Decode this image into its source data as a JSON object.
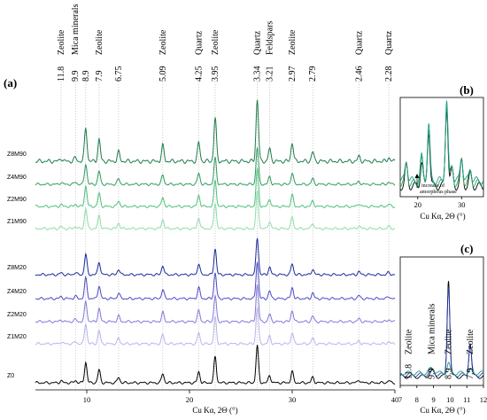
{
  "panels": {
    "a": "(a)",
    "b": "(b)",
    "c": "(c)"
  },
  "colors": {
    "zeolite_m90": [
      "#1e7a4a",
      "#2e9a5c",
      "#4cbf7c",
      "#8fdcab"
    ],
    "zeolite_m20": [
      "#1a2a9a",
      "#4a4ac8",
      "#7f79d8",
      "#b6b4ec"
    ],
    "reference": "#000000",
    "highlight_green": "#2fa84f",
    "highlight_teal": "#1f9a8a",
    "highlight_blue": "#2b3fb0"
  },
  "chart_data": [
    {
      "type": "line",
      "xlabel": "Cu Kα, 2Θ (°)",
      "xlim": [
        5,
        40
      ],
      "xticks": [
        10,
        20,
        30,
        40
      ],
      "series": [
        {
          "name": "Z8M90",
          "color": "#1e7a4a"
        },
        {
          "name": "Z4M90",
          "color": "#2e9a5c"
        },
        {
          "name": "Z2M90",
          "color": "#4cbf7c"
        },
        {
          "name": "Z1M90",
          "color": "#8fdcab"
        },
        {
          "name": "Z8M20",
          "color": "#1a2a9a"
        },
        {
          "name": "Z4M20",
          "color": "#4a4ac8"
        },
        {
          "name": "Z2M20",
          "color": "#7f79d8"
        },
        {
          "name": "Z1M20",
          "color": "#b6b4ec"
        },
        {
          "name": "Z0",
          "color": "#000000"
        }
      ],
      "peaks": [
        {
          "d": "11.8",
          "two_theta": 7.5,
          "phase": "Zeolite"
        },
        {
          "d": "9.9",
          "two_theta": 8.9,
          "phase": "Mica minerals"
        },
        {
          "d": "8.9",
          "two_theta": 9.9,
          "phase": ""
        },
        {
          "d": "7.9",
          "two_theta": 11.2,
          "phase": "Zeolite"
        },
        {
          "d": "6.75",
          "two_theta": 13.1,
          "phase": ""
        },
        {
          "d": "5.09",
          "two_theta": 17.4,
          "phase": "Zeolite"
        },
        {
          "d": "4.25",
          "two_theta": 20.9,
          "phase": "Quartz"
        },
        {
          "d": "3.95",
          "two_theta": 22.5,
          "phase": "Zeolite"
        },
        {
          "d": "3.34",
          "two_theta": 26.6,
          "phase": "Quartz"
        },
        {
          "d": "3.21",
          "two_theta": 27.8,
          "phase": "Feldspars"
        },
        {
          "d": "2.97",
          "two_theta": 30.0,
          "phase": "Zeolite"
        },
        {
          "d": "2.79",
          "two_theta": 32.0,
          "phase": ""
        },
        {
          "d": "2.46",
          "two_theta": 36.5,
          "phase": "Quartz"
        },
        {
          "d": "2.28",
          "two_theta": 39.4,
          "phase": "Quartz"
        }
      ]
    },
    {
      "type": "line",
      "xlabel": "Cu Kα, 2Θ (°)",
      "xlim": [
        16,
        35
      ],
      "xticks": [
        20,
        30
      ],
      "annotation": [
        "increase of",
        "amorphous phase"
      ]
    },
    {
      "type": "line",
      "xlabel": "Cu Kα, 2Θ (°)",
      "xlim": [
        7,
        12
      ],
      "xticks": [
        7,
        8,
        9,
        10,
        11,
        12
      ],
      "peak_labels": [
        {
          "text": "11.8",
          "phase": "Zeolite",
          "two_theta": 7.5
        },
        {
          "text": "9.9",
          "phase": "Mica minerals",
          "two_theta": 8.9
        },
        {
          "text": "8.9",
          "phase": "Zeolite",
          "two_theta": 9.9
        },
        {
          "text": "7.9",
          "phase": "Zeolite",
          "two_theta": 11.2
        }
      ]
    }
  ]
}
